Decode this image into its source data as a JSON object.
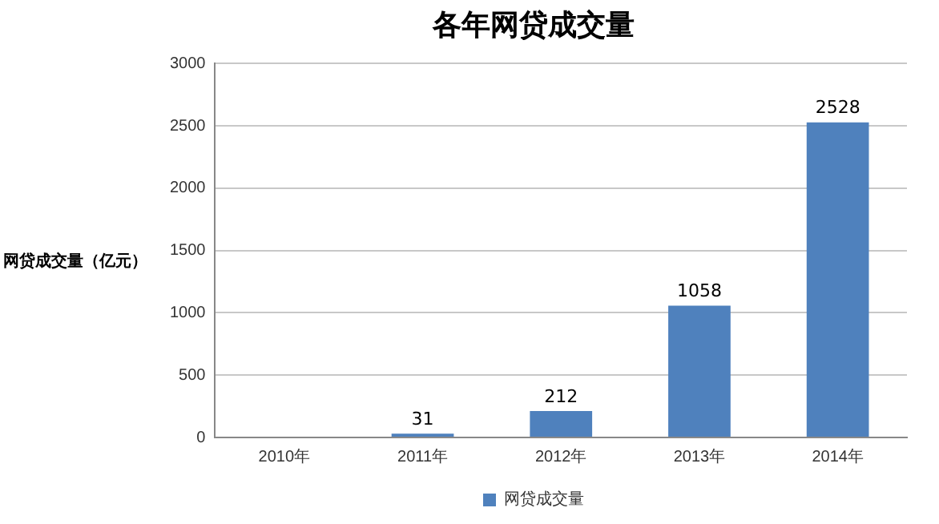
{
  "chart_data": {
    "type": "bar",
    "title": "各年网贷成交量",
    "ylabel": "网贷成交量（亿元）",
    "categories": [
      "2010年",
      "2011年",
      "2012年",
      "2013年",
      "2014年"
    ],
    "series": [
      {
        "name": "网贷成交量",
        "color": "#4f81bd",
        "values": [
          null,
          31,
          212,
          1058,
          2528
        ]
      }
    ],
    "ylim": [
      0,
      3000
    ],
    "yticks": [
      0,
      500,
      1000,
      1500,
      2000,
      2500,
      3000
    ],
    "grid": "y",
    "legend": "bottom",
    "data_labels": true
  }
}
